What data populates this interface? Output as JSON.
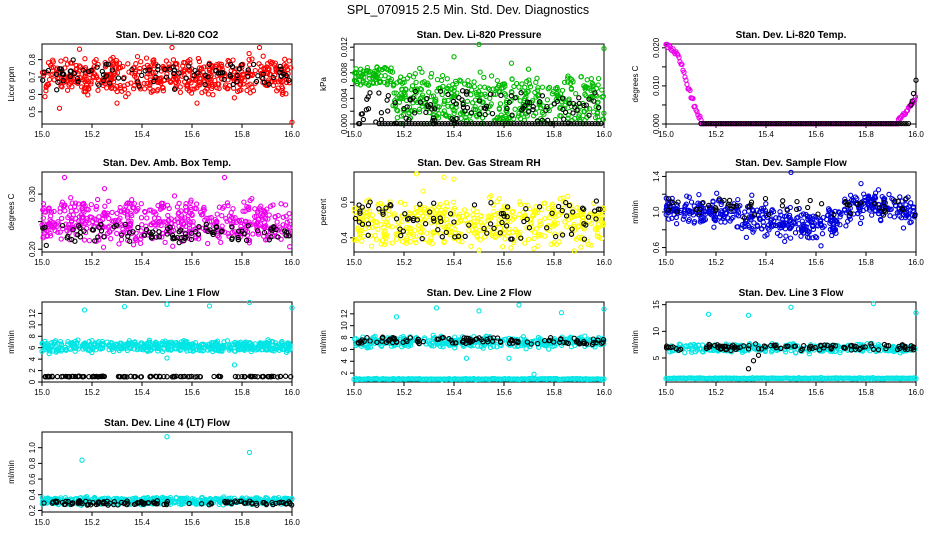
{
  "figure": {
    "title": "SPL_070915  2.5 Min. Std. Dev. Diagnostics"
  },
  "chart_data": [
    {
      "type": "scatter",
      "title": "Stan. Dev. Li-820 CO2",
      "ylabel": "Licor ppm",
      "xlim": [
        15.0,
        16.0
      ],
      "ylim": [
        0.43,
        0.89
      ],
      "xticks": [
        15.0,
        15.2,
        15.4,
        15.6,
        15.8,
        16.0
      ],
      "xtick_labels": [
        "15.0",
        "15.2",
        "15.4",
        "15.6",
        "15.8",
        "16.0"
      ],
      "yticks": [
        0.5,
        0.6,
        0.7,
        0.8
      ],
      "ytick_labels": [
        "0.5",
        "0.6",
        "0.7",
        "0.8"
      ],
      "colors": {
        "main": "#ff0000",
        "secondary": "#000000"
      },
      "series": [
        {
          "color": "#ff0000",
          "count": 520,
          "band": [
            0.62,
            0.79
          ],
          "spread": 0.055,
          "outliers": [
            [
              15.15,
              0.86
            ],
            [
              15.52,
              0.87
            ],
            [
              15.87,
              0.87
            ],
            [
              15.07,
              0.52
            ],
            [
              16.0,
              0.44
            ],
            [
              15.3,
              0.55
            ],
            [
              15.62,
              0.55
            ]
          ]
        },
        {
          "color": "#000000",
          "count": 95,
          "band": [
            0.66,
            0.76
          ],
          "spread": 0.05
        }
      ]
    },
    {
      "type": "scatter",
      "title": "Stan. Dev. Li-820 Pressure",
      "ylabel": "kPa",
      "xlim": [
        15.0,
        16.0
      ],
      "ylim": [
        0.0,
        0.0125
      ],
      "xticks": [
        15.0,
        15.2,
        15.4,
        15.6,
        15.8,
        16.0
      ],
      "xtick_labels": [
        "15.0",
        "15.2",
        "15.4",
        "15.6",
        "15.8",
        "16.0"
      ],
      "yticks": [
        0.0,
        0.002,
        0.004,
        0.006,
        0.008,
        0.01,
        0.012
      ],
      "ytick_labels": [
        "0.000",
        "",
        "0.004",
        "",
        "0.008",
        "",
        "0.012"
      ],
      "colors": {
        "main": "#00bb00",
        "secondary": "#000000"
      },
      "series": [
        {
          "color": "#00bb00",
          "count": 520,
          "band": [
            0.0005,
            0.007
          ],
          "spread": 0.002,
          "early_high": [
            0.006,
            0.009
          ],
          "outliers": [
            [
              15.5,
              0.0125
            ],
            [
              16.0,
              0.0118
            ],
            [
              15.4,
              0.0105
            ],
            [
              15.63,
              0.0095
            ]
          ]
        },
        {
          "color": "#000000",
          "count": 110,
          "band": [
            0.0,
            0.005
          ],
          "spread": 0.001,
          "floor_line": 0.0
        }
      ]
    },
    {
      "type": "scatter",
      "title": "Stan. Dev. Li-820 Temp.",
      "ylabel": "degrees C",
      "xlim": [
        15.0,
        16.0
      ],
      "ylim": [
        0.0,
        0.021
      ],
      "xticks": [
        15.0,
        15.2,
        15.4,
        15.6,
        15.8,
        16.0
      ],
      "xtick_labels": [
        "15.0",
        "15.2",
        "15.4",
        "15.6",
        "15.8",
        "16.0"
      ],
      "yticks": [
        0.0,
        0.005,
        0.01,
        0.015,
        0.02
      ],
      "ytick_labels": [
        "0.000",
        "",
        "0.010",
        "",
        "0.020"
      ],
      "colors": {
        "main": "#ee00ee",
        "secondary": "#000000"
      },
      "series": [
        {
          "color": "#ee00ee",
          "ramp_down": [
            [
              15.0,
              0.021
            ],
            [
              15.05,
              0.018
            ],
            [
              15.1,
              0.007
            ],
            [
              15.13,
              0.002
            ]
          ],
          "flat": 0.0,
          "ramp_up": [
            [
              15.93,
              0.001
            ],
            [
              15.97,
              0.004
            ],
            [
              16.0,
              0.007
            ]
          ]
        },
        {
          "color": "#000000",
          "flat": 0.0,
          "rise": [
            [
              15.98,
              0.005
            ],
            [
              16.0,
              0.0115
            ]
          ]
        }
      ]
    },
    {
      "type": "scatter",
      "title": "Stan. Dev. Amb. Box Temp.",
      "ylabel": "degrees C",
      "xlim": [
        15.0,
        16.0
      ],
      "ylim": [
        0.195,
        0.34
      ],
      "xticks": [
        15.0,
        15.2,
        15.4,
        15.6,
        15.8,
        16.0
      ],
      "xtick_labels": [
        "15.0",
        "15.2",
        "15.4",
        "15.6",
        "15.8",
        "16.0"
      ],
      "yticks": [
        0.2,
        0.25,
        0.3
      ],
      "ytick_labels": [
        "0.20",
        "",
        "0.30"
      ],
      "colors": {
        "main": "#ee00ee",
        "secondary": "#000000"
      },
      "series": [
        {
          "color": "#ee00ee",
          "count": 520,
          "band": [
            0.22,
            0.28
          ],
          "spread": 0.02,
          "outliers": [
            [
              15.09,
              0.33
            ],
            [
              15.73,
              0.33
            ],
            [
              15.25,
              0.31
            ]
          ]
        },
        {
          "color": "#000000",
          "count": 100,
          "band": [
            0.215,
            0.245
          ],
          "spread": 0.01
        }
      ]
    },
    {
      "type": "scatter",
      "title": "Stan. Dev. Gas Stream RH",
      "ylabel": "percent",
      "xlim": [
        15.0,
        16.0
      ],
      "ylim": [
        0.32,
        0.77
      ],
      "xticks": [
        15.0,
        15.2,
        15.4,
        15.6,
        15.8,
        16.0
      ],
      "xtick_labels": [
        "15.0",
        "15.2",
        "15.4",
        "15.6",
        "15.8",
        "16.0"
      ],
      "yticks": [
        0.4,
        0.6
      ],
      "ytick_labels": [
        "0.4",
        "0.6"
      ],
      "colors": {
        "main": "#ffff00",
        "secondary": "#000000"
      },
      "series": [
        {
          "color": "#ffff00",
          "count": 460,
          "band": [
            0.38,
            0.58
          ],
          "spread": 0.08,
          "outliers": [
            [
              15.25,
              0.76
            ],
            [
              15.36,
              0.74
            ],
            [
              15.4,
              0.73
            ],
            [
              15.5,
              0.33
            ]
          ]
        },
        {
          "color": "#000000",
          "count": 90,
          "band": [
            0.4,
            0.6
          ],
          "spread": 0.05
        }
      ]
    },
    {
      "type": "scatter",
      "title": "Stan. Dev. Sample Flow",
      "ylabel": "ml/min",
      "xlim": [
        15.0,
        16.0
      ],
      "ylim": [
        0.55,
        1.45
      ],
      "xticks": [
        15.0,
        15.2,
        15.4,
        15.6,
        15.8,
        16.0
      ],
      "xtick_labels": [
        "15.0",
        "15.2",
        "15.4",
        "15.6",
        "15.8",
        "16.0"
      ],
      "yticks": [
        0.6,
        0.8,
        1.0,
        1.2,
        1.4
      ],
      "ytick_labels": [
        "0.6",
        "",
        "1.0",
        "",
        "1.4"
      ],
      "colors": {
        "main": "#0000dd",
        "secondary": "#000000"
      },
      "series": [
        {
          "color": "#0000dd",
          "count": 520,
          "wave": [
            [
              15.0,
              1.02
            ],
            [
              15.25,
              1.0
            ],
            [
              15.45,
              0.86
            ],
            [
              15.6,
              0.84
            ],
            [
              15.8,
              1.12
            ],
            [
              15.9,
              1.08
            ],
            [
              16.0,
              1.0
            ]
          ],
          "spread": 0.08,
          "outliers": [
            [
              15.5,
              1.45
            ],
            [
              15.78,
              1.32
            ],
            [
              15.85,
              1.25
            ],
            [
              15.62,
              0.62
            ],
            [
              15.95,
              0.82
            ]
          ]
        },
        {
          "color": "#000000",
          "count": 60,
          "band": [
            0.95,
            1.15
          ],
          "spread": 0.05
        }
      ]
    },
    {
      "type": "scatter",
      "title": "Stan. Dev. Line 1 Flow",
      "ylabel": "ml/min",
      "xlim": [
        15.0,
        16.0
      ],
      "ylim": [
        0.0,
        14.0
      ],
      "xticks": [
        15.0,
        15.2,
        15.4,
        15.6,
        15.8,
        16.0
      ],
      "xtick_labels": [
        "15.0",
        "15.2",
        "15.4",
        "15.6",
        "15.8",
        "16.0"
      ],
      "yticks": [
        0,
        2,
        4,
        6,
        8,
        10,
        12
      ],
      "ytick_labels": [
        "0",
        "2",
        "4",
        "6",
        "8",
        "10",
        "12"
      ],
      "colors": {
        "main": "#00e5e5",
        "secondary": "#000000"
      },
      "series": [
        {
          "color": "#00e5e5",
          "count": 500,
          "band": [
            5.5,
            7.0
          ],
          "spread": 0.5,
          "outliers": [
            [
              15.17,
              12.6
            ],
            [
              15.33,
              13.2
            ],
            [
              15.5,
              13.6
            ],
            [
              15.67,
              13.3
            ],
            [
              15.83,
              14.0
            ],
            [
              16.0,
              13.0
            ],
            [
              15.5,
              4.2
            ],
            [
              15.77,
              3.0
            ]
          ]
        },
        {
          "color": "#000000",
          "count": 110,
          "band": [
            0.9,
            1.0
          ],
          "spread": 0.03
        }
      ]
    },
    {
      "type": "scatter",
      "title": "Stan. Dev. Line 2 Flow",
      "ylabel": "ml/min",
      "xlim": [
        15.0,
        16.0
      ],
      "ylim": [
        0.5,
        14.0
      ],
      "xticks": [
        15.0,
        15.2,
        15.4,
        15.6,
        15.8,
        16.0
      ],
      "xtick_labels": [
        "15.0",
        "15.2",
        "15.4",
        "15.6",
        "15.8",
        "16.0"
      ],
      "yticks": [
        2,
        4,
        6,
        8,
        10,
        12
      ],
      "ytick_labels": [
        "2",
        "4",
        "6",
        "8",
        "10",
        "12"
      ],
      "colors": {
        "main": "#00e5e5",
        "secondary": "#000000"
      },
      "series": [
        {
          "color": "#00e5e5",
          "count": 380,
          "band": [
            6.5,
            8.0
          ],
          "spread": 0.5,
          "low_line": 1.0,
          "low_count": 180,
          "outliers": [
            [
              15.17,
              11.5
            ],
            [
              15.33,
              13.0
            ],
            [
              15.5,
              12.5
            ],
            [
              15.66,
              13.5
            ],
            [
              15.83,
              12.2
            ],
            [
              16.0,
              12.8
            ],
            [
              15.45,
              4.5
            ],
            [
              15.62,
              4.5
            ],
            [
              15.72,
              1.8
            ]
          ]
        },
        {
          "color": "#000000",
          "count": 110,
          "band": [
            7.0,
            8.0
          ],
          "spread": 0.3
        }
      ]
    },
    {
      "type": "scatter",
      "title": "Stan. Dev. Line 3 Flow",
      "ylabel": "ml/min",
      "xlim": [
        15.0,
        16.0
      ],
      "ylim": [
        0.5,
        15.5
      ],
      "xticks": [
        15.0,
        15.2,
        15.4,
        15.6,
        15.8,
        16.0
      ],
      "xtick_labels": [
        "15.0",
        "15.2",
        "15.4",
        "15.6",
        "15.8",
        "16.0"
      ],
      "yticks": [
        5,
        10,
        15
      ],
      "ytick_labels": [
        "5",
        "10",
        "15"
      ],
      "colors": {
        "main": "#00e5e5",
        "secondary": "#000000"
      },
      "series": [
        {
          "color": "#00e5e5",
          "count": 300,
          "band": [
            6.2,
            7.5
          ],
          "spread": 0.4,
          "low_line": 1.2,
          "low_count": 180,
          "outliers": [
            [
              15.17,
              13.2
            ],
            [
              15.33,
              13.0
            ],
            [
              15.5,
              14.5
            ],
            [
              15.83,
              15.2
            ],
            [
              16.0,
              13.5
            ]
          ]
        },
        {
          "color": "#000000",
          "count": 110,
          "band": [
            6.5,
            7.5
          ],
          "spread": 0.3,
          "dip": [
            [
              15.33,
              3.0
            ],
            [
              15.35,
              4.5
            ],
            [
              15.37,
              5.5
            ]
          ]
        }
      ]
    },
    {
      "type": "scatter",
      "title": "Stan. Dev. Line 4 (LT) Flow",
      "ylabel": "ml/min",
      "xlim": [
        15.0,
        16.0
      ],
      "ylim": [
        0.18,
        1.2
      ],
      "xticks": [
        15.0,
        15.2,
        15.4,
        15.6,
        15.8,
        16.0
      ],
      "xtick_labels": [
        "15.0",
        "15.2",
        "15.4",
        "15.6",
        "15.8",
        "16.0"
      ],
      "yticks": [
        0.2,
        0.4,
        0.6,
        0.8,
        1.0
      ],
      "ytick_labels": [
        "0.2",
        "0.4",
        "0.6",
        "0.8",
        "1.0"
      ],
      "colors": {
        "main": "#00e5e5",
        "secondary": "#000000"
      },
      "series": [
        {
          "color": "#00e5e5",
          "count": 480,
          "band": [
            0.28,
            0.36
          ],
          "spread": 0.02,
          "outliers": [
            [
              15.16,
              0.84
            ],
            [
              15.5,
              1.14
            ],
            [
              15.83,
              0.94
            ]
          ]
        },
        {
          "color": "#000000",
          "count": 110,
          "band": [
            0.27,
            0.32
          ],
          "spread": 0.015
        }
      ]
    }
  ]
}
